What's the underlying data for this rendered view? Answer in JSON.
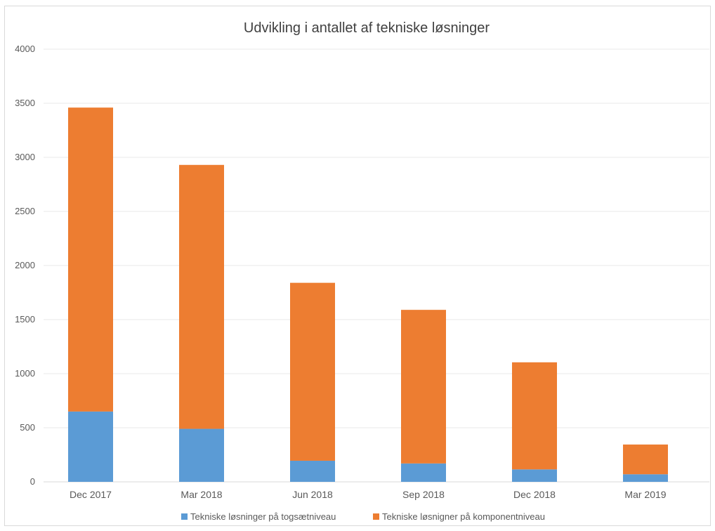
{
  "chart_data": {
    "type": "bar",
    "stacked": true,
    "title": "Udvikling i antallet af tekniske løsninger",
    "xlabel": "",
    "ylabel": "",
    "categories": [
      "Dec 2017",
      "Mar 2018",
      "Jun 2018",
      "Sep 2018",
      "Dec 2018",
      "Mar 2019"
    ],
    "series": [
      {
        "name": "Tekniske løsninger på togsætniveau",
        "color": "#5b9bd5",
        "values": [
          650,
          490,
          195,
          170,
          115,
          70
        ]
      },
      {
        "name": "Tekniske løsnigner på komponentniveau",
        "color": "#ed7d31",
        "values": [
          2810,
          2440,
          1645,
          1420,
          990,
          275
        ]
      }
    ],
    "ylim": [
      0,
      4000
    ],
    "yticks": [
      0,
      500,
      1000,
      1500,
      2000,
      2500,
      3000,
      3500,
      4000
    ],
    "grid": true,
    "legend_position": "bottom"
  }
}
